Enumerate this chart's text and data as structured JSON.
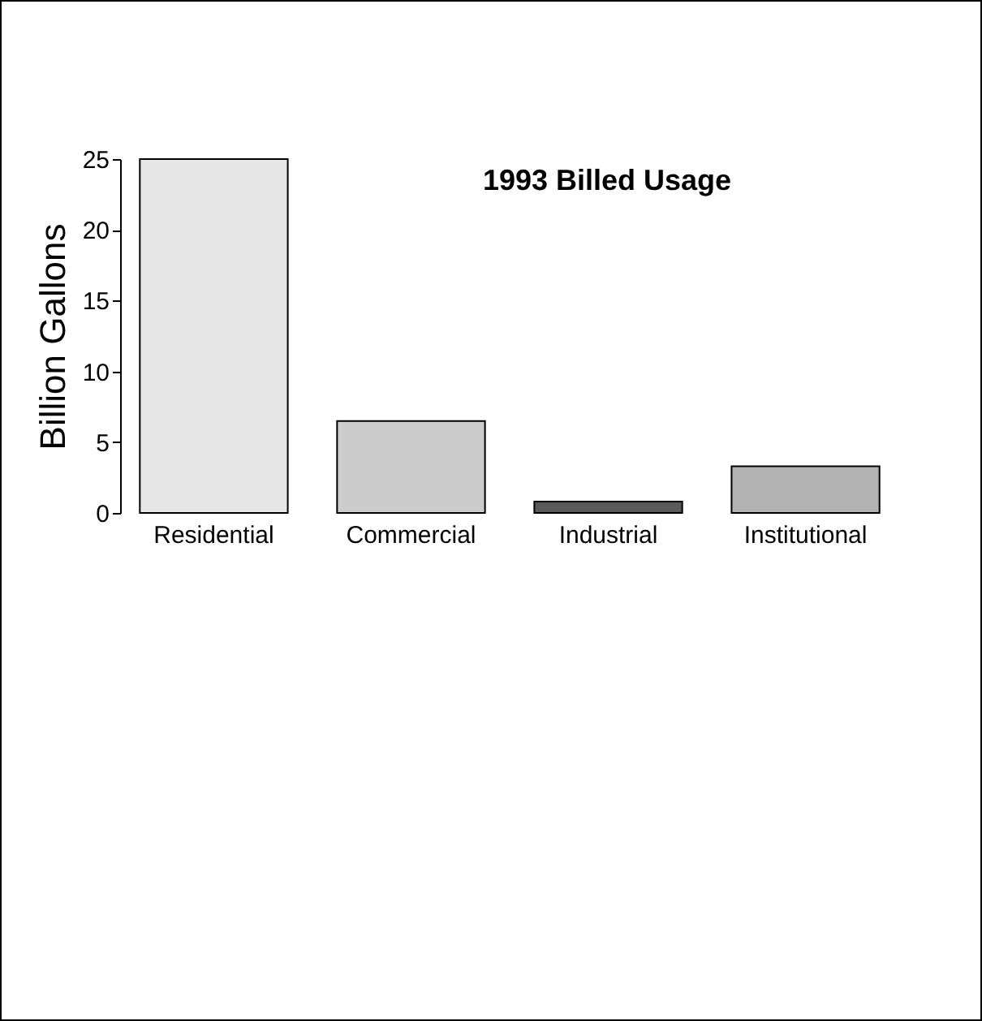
{
  "chart_data": {
    "type": "bar",
    "title": "1993 Billed Usage",
    "ylabel": "Billion Gallons",
    "categories": [
      "Residential",
      "Commercial",
      "Industrial",
      "Institutional"
    ],
    "values": [
      25,
      6.5,
      0.8,
      3.3
    ],
    "colors": [
      "#e6e6e6",
      "#cccccc",
      "#5a5a5a",
      "#b3b3b3"
    ],
    "ylim": [
      0,
      25
    ],
    "yticks": [
      0,
      5,
      10,
      15,
      20,
      25
    ],
    "grid": false
  }
}
